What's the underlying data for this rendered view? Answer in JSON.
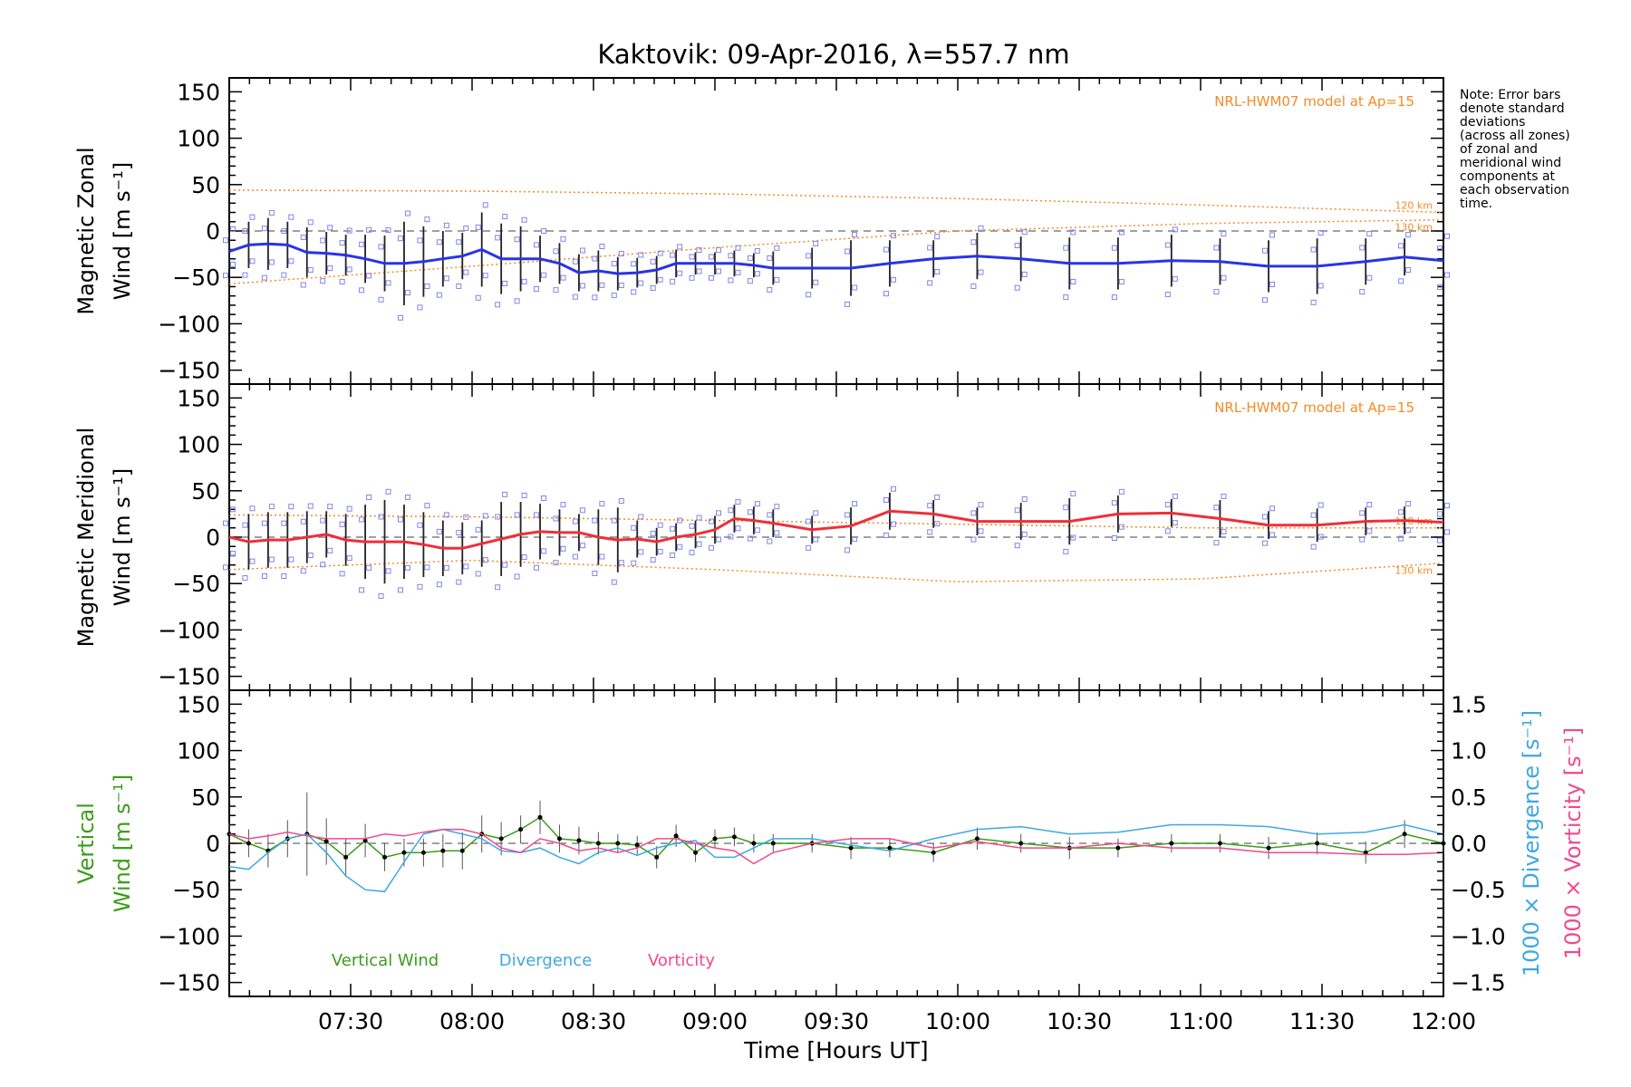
{
  "title": "Kaktovik: 09-Apr-2016, λ=557.7 nm",
  "note": [
    "Note: Error bars",
    "denote standard",
    "deviations",
    "(across all zones)",
    "of zonal and",
    "meridional wind",
    "components at",
    "each observation",
    "time."
  ],
  "colors": {
    "zonal": "#2a33e8",
    "meridional": "#ef2f3a",
    "vertical": "#3b9d1a",
    "divergence": "#3ea8e0",
    "vorticity": "#ef4a8c",
    "model": "#f28c28",
    "zone_markers": "#7f86ea",
    "reference": "#808080",
    "axes": "#000000"
  },
  "chart_data": [
    {
      "type": "line",
      "panel": "top",
      "ylabel": [
        "Magnetic Zonal",
        "Wind [m s⁻¹]"
      ],
      "ylim": [
        -165,
        165
      ],
      "yticks": [
        150,
        100,
        50,
        0,
        -50,
        -100,
        -150
      ],
      "xlim": [
        7.0,
        12.0
      ],
      "model_label": "NRL-HWM07 model at Ap=15",
      "model_curves": [
        {
          "name": "120 km",
          "x": [
            7.0,
            8.0,
            9.0,
            10.0,
            11.0,
            12.0
          ],
          "y": [
            44,
            43,
            40,
            35,
            28,
            20
          ]
        },
        {
          "name": "130 km",
          "x": [
            7.0,
            8.0,
            9.0,
            10.0,
            11.0,
            12.0
          ],
          "y": [
            -57,
            -38,
            -18,
            0,
            8,
            12
          ]
        }
      ],
      "series": [
        {
          "name": "Magnetic Zonal Wind",
          "x": [
            7.0,
            7.08,
            7.16,
            7.24,
            7.32,
            7.4,
            7.48,
            7.56,
            7.64,
            7.72,
            7.8,
            7.88,
            7.96,
            8.04,
            8.12,
            8.2,
            8.28,
            8.36,
            8.44,
            8.52,
            8.6,
            8.68,
            8.76,
            8.84,
            8.92,
            9.0,
            9.08,
            9.16,
            9.24,
            9.4,
            9.56,
            9.72,
            9.9,
            10.08,
            10.26,
            10.46,
            10.66,
            10.88,
            11.08,
            11.28,
            11.48,
            11.68,
            11.84,
            12.0
          ],
          "y": [
            -22,
            -15,
            -14,
            -15,
            -23,
            -24,
            -26,
            -30,
            -35,
            -35,
            -33,
            -30,
            -27,
            -20,
            -30,
            -30,
            -30,
            -35,
            -45,
            -43,
            -46,
            -45,
            -42,
            -35,
            -35,
            -35,
            -35,
            -37,
            -40,
            -40,
            -40,
            -35,
            -30,
            -27,
            -30,
            -35,
            -35,
            -32,
            -33,
            -38,
            -38,
            -33,
            -28,
            -32
          ],
          "err": [
            20,
            25,
            28,
            25,
            27,
            23,
            22,
            26,
            30,
            45,
            38,
            30,
            25,
            40,
            38,
            35,
            25,
            22,
            20,
            22,
            18,
            16,
            15,
            15,
            12,
            12,
            14,
            13,
            18,
            22,
            30,
            25,
            20,
            25,
            24,
            28,
            28,
            28,
            25,
            28,
            30,
            25,
            20,
            22
          ]
        }
      ]
    },
    {
      "type": "line",
      "panel": "middle",
      "ylabel": [
        "Magnetic Meridional",
        "Wind [m s⁻¹]"
      ],
      "ylim": [
        -165,
        165
      ],
      "yticks": [
        150,
        100,
        50,
        0,
        -50,
        -100,
        -150
      ],
      "xlim": [
        7.0,
        12.0
      ],
      "model_label": "NRL-HWM07 model at Ap=15",
      "model_curves": [
        {
          "name": "120 km",
          "x": [
            7.0,
            8.0,
            9.0,
            10.0,
            11.0,
            12.0
          ],
          "y": [
            24,
            22,
            18,
            14,
            10,
            10
          ]
        },
        {
          "name": "130 km",
          "x": [
            7.0,
            8.0,
            9.0,
            10.0,
            11.0,
            12.0
          ],
          "y": [
            -35,
            -25,
            -35,
            -48,
            -45,
            -28
          ]
        }
      ],
      "series": [
        {
          "name": "Magnetic Meridional Wind",
          "x": [
            7.0,
            7.08,
            7.16,
            7.24,
            7.32,
            7.4,
            7.48,
            7.56,
            7.64,
            7.72,
            7.8,
            7.88,
            7.96,
            8.04,
            8.12,
            8.2,
            8.28,
            8.36,
            8.44,
            8.52,
            8.6,
            8.68,
            8.76,
            8.84,
            8.92,
            9.0,
            9.08,
            9.16,
            9.24,
            9.4,
            9.56,
            9.72,
            9.9,
            10.08,
            10.26,
            10.46,
            10.66,
            10.88,
            11.08,
            11.28,
            11.48,
            11.68,
            11.84,
            12.0
          ],
          "y": [
            0,
            -5,
            -3,
            -3,
            0,
            3,
            -3,
            -5,
            -5,
            -5,
            -8,
            -12,
            -12,
            -7,
            -2,
            3,
            6,
            5,
            5,
            0,
            -3,
            -2,
            -5,
            0,
            3,
            8,
            20,
            18,
            15,
            8,
            12,
            28,
            25,
            17,
            17,
            17,
            25,
            26,
            20,
            13,
            13,
            17,
            18,
            16
          ],
          "err": [
            25,
            30,
            30,
            30,
            28,
            25,
            28,
            40,
            45,
            40,
            35,
            30,
            28,
            25,
            40,
            35,
            30,
            25,
            20,
            30,
            35,
            20,
            15,
            15,
            15,
            15,
            15,
            15,
            15,
            15,
            20,
            20,
            15,
            15,
            20,
            25,
            20,
            15,
            20,
            15,
            18,
            15,
            15,
            15
          ]
        }
      ]
    },
    {
      "type": "line",
      "panel": "bottom",
      "ylabel": [
        "Vertical",
        "Wind [m s⁻¹]"
      ],
      "y2label_divergence": "1000 × Divergence [s⁻¹]",
      "y2label_vorticity": "1000 × Vorticity [s⁻¹]",
      "ylim": [
        -165,
        165
      ],
      "yticks": [
        150,
        100,
        50,
        0,
        -50,
        -100,
        -150
      ],
      "y2lim": [
        -1.65,
        1.65
      ],
      "y2ticks": [
        1.5,
        1.0,
        0.5,
        0.0,
        -0.5,
        -1.0,
        -1.5
      ],
      "xlim": [
        7.0,
        12.0
      ],
      "xlabel": "Time [Hours UT]",
      "xticks": [
        7.5,
        8.0,
        8.5,
        9.0,
        9.5,
        10.0,
        10.5,
        11.0,
        11.5,
        12.0
      ],
      "xticklabels": [
        "07:30",
        "08:00",
        "08:30",
        "09:00",
        "09:30",
        "10:00",
        "10:30",
        "11:00",
        "11:30",
        "12:00"
      ],
      "legend": [
        "Vertical Wind",
        "Divergence",
        "Vorticity"
      ],
      "series": [
        {
          "name": "Vertical Wind",
          "axis": "left",
          "x": [
            7.0,
            7.08,
            7.16,
            7.24,
            7.32,
            7.4,
            7.48,
            7.56,
            7.64,
            7.72,
            7.8,
            7.88,
            7.96,
            8.04,
            8.12,
            8.2,
            8.28,
            8.36,
            8.44,
            8.52,
            8.6,
            8.68,
            8.76,
            8.84,
            8.92,
            9.0,
            9.08,
            9.16,
            9.24,
            9.4,
            9.56,
            9.72,
            9.9,
            10.08,
            10.26,
            10.46,
            10.66,
            10.88,
            11.08,
            11.28,
            11.48,
            11.68,
            11.84,
            12.0
          ],
          "y": [
            10,
            0,
            -8,
            5,
            10,
            2,
            -15,
            3,
            -15,
            -10,
            -10,
            -8,
            -8,
            10,
            5,
            15,
            28,
            5,
            3,
            0,
            0,
            -2,
            -15,
            8,
            -10,
            5,
            7,
            0,
            0,
            0,
            -5,
            -5,
            -10,
            5,
            0,
            -5,
            -5,
            0,
            0,
            -5,
            0,
            -10,
            10,
            0
          ],
          "err": [
            12,
            15,
            18,
            20,
            45,
            25,
            20,
            18,
            15,
            15,
            15,
            18,
            20,
            20,
            18,
            15,
            18,
            15,
            15,
            12,
            10,
            10,
            12,
            12,
            10,
            10,
            10,
            10,
            10,
            10,
            12,
            10,
            10,
            12,
            10,
            12,
            10,
            10,
            10,
            12,
            12,
            12,
            15,
            12
          ]
        },
        {
          "name": "Divergence",
          "axis": "right",
          "x": [
            7.0,
            7.08,
            7.16,
            7.24,
            7.32,
            7.4,
            7.48,
            7.56,
            7.64,
            7.72,
            7.8,
            7.88,
            7.96,
            8.04,
            8.12,
            8.2,
            8.28,
            8.36,
            8.44,
            8.52,
            8.6,
            8.68,
            8.76,
            8.84,
            8.92,
            9.0,
            9.08,
            9.16,
            9.24,
            9.4,
            9.56,
            9.72,
            9.9,
            10.08,
            10.26,
            10.46,
            10.66,
            10.88,
            11.08,
            11.28,
            11.48,
            11.68,
            11.84,
            12.0
          ],
          "y": [
            -0.25,
            -0.28,
            -0.1,
            0.05,
            0.1,
            -0.1,
            -0.35,
            -0.5,
            -0.52,
            -0.2,
            0.1,
            0.15,
            0.1,
            0.05,
            -0.08,
            -0.1,
            -0.05,
            -0.15,
            -0.22,
            -0.1,
            -0.05,
            -0.13,
            -0.05,
            0.0,
            0.03,
            -0.15,
            -0.15,
            -0.05,
            0.05,
            0.05,
            -0.02,
            -0.08,
            0.05,
            0.15,
            0.18,
            0.1,
            0.12,
            0.2,
            0.2,
            0.18,
            0.1,
            0.12,
            0.2,
            0.1
          ]
        },
        {
          "name": "Vorticity",
          "axis": "right",
          "x": [
            7.0,
            7.08,
            7.16,
            7.24,
            7.32,
            7.4,
            7.48,
            7.56,
            7.64,
            7.72,
            7.8,
            7.88,
            7.96,
            8.04,
            8.12,
            8.2,
            8.28,
            8.36,
            8.44,
            8.52,
            8.6,
            8.68,
            8.76,
            8.84,
            8.92,
            9.0,
            9.08,
            9.16,
            9.24,
            9.4,
            9.56,
            9.72,
            9.9,
            10.08,
            10.26,
            10.46,
            10.66,
            10.88,
            11.08,
            11.28,
            11.48,
            11.68,
            11.84,
            12.0
          ],
          "y": [
            0.1,
            0.05,
            0.08,
            0.12,
            0.08,
            0.05,
            0.05,
            0.05,
            0.1,
            0.08,
            0.12,
            0.15,
            0.15,
            0.1,
            -0.05,
            -0.1,
            0.05,
            0.0,
            -0.08,
            -0.05,
            -0.1,
            -0.05,
            0.05,
            0.05,
            0.0,
            -0.05,
            -0.08,
            -0.22,
            -0.1,
            0.0,
            0.05,
            0.05,
            -0.05,
            0.02,
            -0.05,
            -0.05,
            0.0,
            -0.05,
            -0.05,
            -0.1,
            -0.1,
            -0.12,
            -0.12,
            -0.1
          ]
        }
      ]
    }
  ]
}
